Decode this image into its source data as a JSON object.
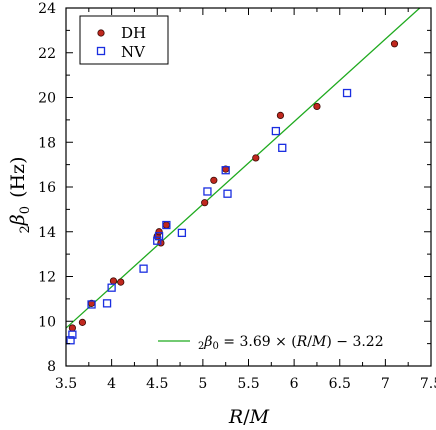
{
  "chart_data": {
    "type": "scatter",
    "title": "",
    "xlabel_parts": {
      "italic_R": "R",
      "slash": "/",
      "italic_M": "M"
    },
    "ylabel_parts": {
      "subscript": "2",
      "symbol": "β",
      "sub0": "0",
      "unit": "(Hz)"
    },
    "xlim": [
      3.5,
      7.5
    ],
    "ylim": [
      8,
      24
    ],
    "xticks": [
      3.5,
      4,
      4.5,
      5,
      5.5,
      6,
      6.5,
      7,
      7.5
    ],
    "xtick_labels": [
      "3.5",
      "4",
      "4.5",
      "5",
      "5.5",
      "6",
      "6.5",
      "7",
      "7.5"
    ],
    "yticks": [
      8,
      10,
      12,
      14,
      16,
      18,
      20,
      22,
      24
    ],
    "ytick_labels": [
      "8",
      "10",
      "12",
      "14",
      "16",
      "18",
      "20",
      "22",
      "24"
    ],
    "grid": false,
    "legend_position": "top-left",
    "series": [
      {
        "name": "DH",
        "marker": "filled-circle",
        "color": "#c0281e",
        "edge_color": "#3a0a05",
        "x": [
          3.57,
          3.68,
          3.78,
          4.02,
          4.1,
          4.5,
          4.52,
          4.54,
          4.6,
          5.02,
          5.12,
          5.25,
          5.58,
          5.85,
          6.25,
          7.1
        ],
        "y": [
          9.7,
          9.95,
          10.8,
          11.8,
          11.75,
          13.8,
          14.0,
          13.5,
          14.3,
          15.3,
          16.3,
          16.8,
          17.3,
          19.2,
          19.6,
          22.4
        ]
      },
      {
        "name": "NV",
        "marker": "open-square",
        "color": "#1a2ee0",
        "x": [
          3.55,
          3.57,
          3.78,
          3.95,
          4.0,
          4.35,
          4.5,
          4.52,
          4.6,
          4.77,
          5.05,
          5.25,
          5.27,
          5.8,
          5.87,
          6.58
        ],
        "y": [
          9.15,
          9.4,
          10.75,
          10.8,
          11.5,
          12.35,
          13.6,
          13.8,
          14.3,
          13.95,
          15.8,
          16.75,
          15.7,
          18.5,
          17.75,
          20.2
        ]
      }
    ],
    "fit_line": {
      "slope": 3.69,
      "intercept": -3.22,
      "color": "#1faa1f",
      "x_range": [
        3.5,
        7.5
      ],
      "label": {
        "prefix_sub": "2",
        "symbol": "β",
        "sub0": "0",
        "rhs": " = 3.69 × (",
        "R": "R",
        "slash": "/",
        "M": "M",
        "tail": ") − 3.22"
      }
    }
  }
}
